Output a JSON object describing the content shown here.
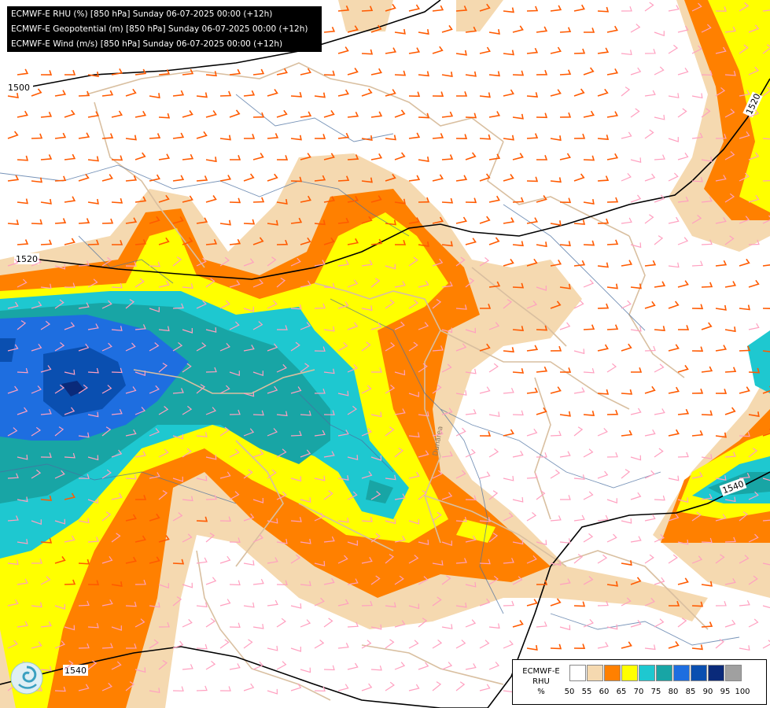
{
  "header": {
    "lines": [
      "ECMWF-E RHU (%) [850 hPa] Sunday 06-07-2025 00:00 (+12h)",
      "ECMWF-E Geopotential (m) [850 hPa] Sunday 06-07-2025 00:00 (+12h)",
      "ECMWF-E Wind (m/s) [850 hPa] Sunday 06-07-2025 00:00 (+12h)"
    ]
  },
  "contours": {
    "labels": [
      "1500",
      "1520",
      "1520",
      "1540",
      "1540"
    ]
  },
  "river_label": "Dunărea",
  "legend": {
    "title_lines": [
      "ECMWF-E",
      "RHU",
      "%"
    ],
    "ticks": [
      "50",
      "55",
      "60",
      "65",
      "70",
      "75",
      "80",
      "85",
      "90",
      "95",
      "100"
    ],
    "colors": [
      "#ffffff",
      "#f5d9b0",
      "#ff8000",
      "#ffff00",
      "#1ec8d0",
      "#18a5a5",
      "#1e6ee0",
      "#0a4fb0",
      "#0a2a7a",
      "#a0a0a0",
      "#606060"
    ]
  },
  "colors": {
    "border": "#d9bfa0",
    "river": "#4a6fa0",
    "wind_strong": "#ff5a00",
    "wind_weak": "#ffa0c0"
  }
}
